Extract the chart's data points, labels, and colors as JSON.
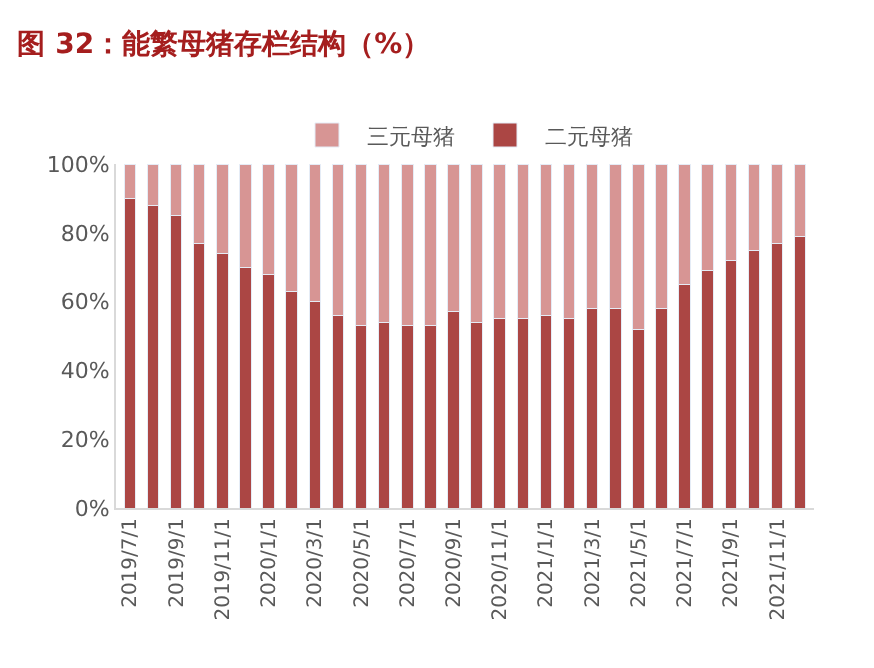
{
  "chart_data": {
    "type": "bar",
    "title": "图 32：能繁母猪存栏结构（%）",
    "stacked": true,
    "categories": [
      "2019/7/1",
      null,
      "2019/9/1",
      null,
      "2019/11/1",
      null,
      "2020/1/1",
      null,
      "2020/3/1",
      null,
      "2020/5/1",
      null,
      "2020/7/1",
      null,
      "2020/9/1",
      null,
      "2020/11/1",
      null,
      "2021/1/1",
      null,
      "2021/3/1",
      null,
      "2021/5/1",
      null,
      "2021/7/1",
      null,
      "2021/9/1",
      null,
      "2021/11/1",
      null
    ],
    "series": [
      {
        "name": "二元母猪",
        "color": "#ab4644",
        "values": [
          90,
          88,
          85,
          77,
          74,
          70,
          68,
          63,
          60,
          56,
          53,
          54,
          53,
          53,
          57,
          54,
          55,
          55,
          56,
          55,
          58,
          58,
          52,
          58,
          65,
          69,
          72,
          75,
          77,
          79
        ]
      },
      {
        "name": "三元母猪",
        "color": "#d79594",
        "values": [
          10,
          12,
          15,
          23,
          26,
          30,
          32,
          37,
          40,
          44,
          47,
          46,
          47,
          47,
          43,
          46,
          45,
          45,
          44,
          45,
          42,
          42,
          48,
          42,
          35,
          31,
          28,
          25,
          23,
          21
        ]
      }
    ],
    "ylim": [
      0,
      100
    ],
    "yticks": [
      {
        "value": 0,
        "label": "0%"
      },
      {
        "value": 20,
        "label": "20%"
      },
      {
        "value": 40,
        "label": "40%"
      },
      {
        "value": 60,
        "label": "60%"
      },
      {
        "value": 80,
        "label": "80%"
      },
      {
        "value": 100,
        "label": "100%"
      }
    ],
    "grid": false,
    "legend": "top"
  }
}
